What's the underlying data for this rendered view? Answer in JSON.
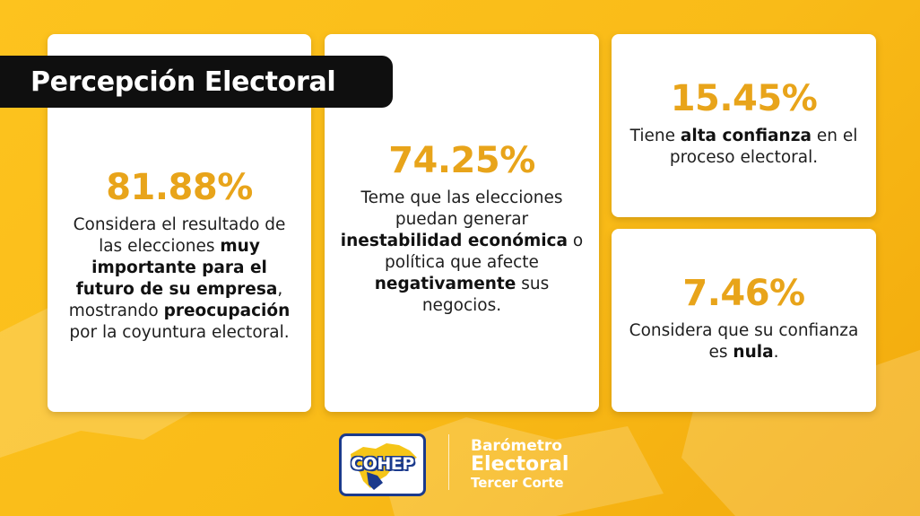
{
  "title": "Percepción Electoral",
  "cards": [
    {
      "percent": "81.88%",
      "parts": [
        {
          "t": "Considera el resultado de las elecciones ",
          "b": false
        },
        {
          "t": "muy importante para el futuro de su empresa",
          "b": true
        },
        {
          "t": ", mostrando ",
          "b": false
        },
        {
          "t": "preocupación",
          "b": true
        },
        {
          "t": " por la coyuntura electoral.",
          "b": false
        }
      ]
    },
    {
      "percent": "74.25%",
      "parts": [
        {
          "t": "Teme que las elecciones puedan generar ",
          "b": false
        },
        {
          "t": "inestabilidad económica",
          "b": true
        },
        {
          "t": " o política que afecte ",
          "b": false
        },
        {
          "t": "negativamente",
          "b": true
        },
        {
          "t": " sus negocios.",
          "b": false
        }
      ]
    },
    {
      "percent": "15.45%",
      "parts": [
        {
          "t": "Tiene ",
          "b": false
        },
        {
          "t": "alta confianza",
          "b": true
        },
        {
          "t": " en el proceso electoral.",
          "b": false
        }
      ]
    },
    {
      "percent": "7.46%",
      "parts": [
        {
          "t": "Considera que su confianza es ",
          "b": false
        },
        {
          "t": "nula",
          "b": true
        },
        {
          "t": ".",
          "b": false
        }
      ]
    }
  ],
  "logo": {
    "text": "COHEP"
  },
  "brand": {
    "line1": "Barómetro",
    "line2": "Electoral",
    "line3": "Tercer Corte"
  },
  "colors": {
    "background": "#fdc31e",
    "accent": "#e8a41a",
    "banner": "#0f0f0f",
    "logo_blue": "#1b3a8c",
    "logo_yellow": "#f5c518"
  }
}
